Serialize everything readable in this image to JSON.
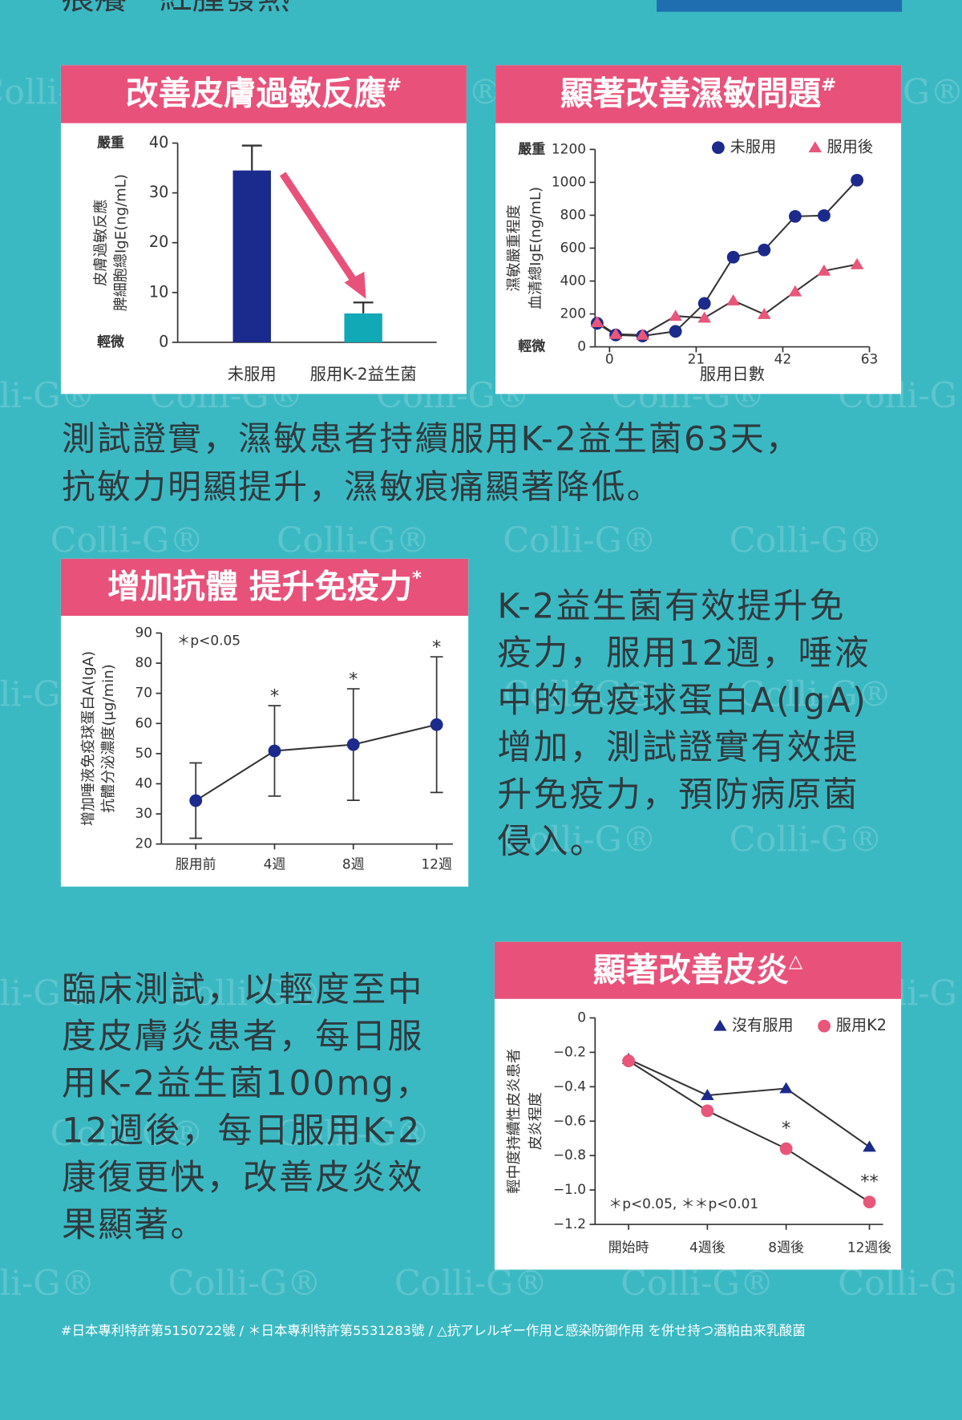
{
  "header_fragment": "痕癢　紅腫發熱",
  "watermark": "Colli-G®",
  "paragraphs": [
    [
      "測試證實，濕敏患者持續服用K-2益生菌63天，",
      "抗敏力明顯提升，濕敏痕痛顯著降低。"
    ],
    [
      "K-2益生菌有效提升免",
      "疫力，服用12週，唾液",
      "中的免疫球蛋白A(IgA)",
      "增加，測試證實有效提",
      "升免疫力，預防病原菌",
      "侵入。"
    ],
    [
      "臨床測試，以輕度至中",
      "度皮膚炎患者，每日服",
      "用K-2益生菌100mg，",
      "12週後，每日服用K-2",
      "康復更快，改善皮炎效",
      "果顯著。"
    ]
  ],
  "footnote": "#日本專利特許第5150722號 / ＊日本專利特許第5531283號 / △抗アレルギー作用と感染防御作用 を併せ持つ酒粕由来乳酸菌",
  "chart_data": [
    {
      "type": "bar",
      "title": "改善皮膚過敏反應",
      "title_mark": "#",
      "ylabel": [
        "皮膚過敏反應",
        "脾細胞總IgE(ng/mL)"
      ],
      "y_top_label": "嚴重",
      "y_bottom_label": "輕微",
      "categories": [
        "未服用",
        "服用K-2益生菌"
      ],
      "values": [
        34.5,
        5.8
      ],
      "errors": [
        5,
        2.2
      ],
      "colors": [
        "#1b2a8d",
        "#12a9b6"
      ],
      "ylim": [
        0,
        40
      ],
      "yticks": [
        0,
        10,
        20,
        30,
        40
      ]
    },
    {
      "type": "line",
      "title": "顯著改善濕敏問題",
      "title_mark": "#",
      "ylabel": [
        "濕敏嚴重程度",
        "血清總IgE(ng/mL)"
      ],
      "y_top_label": "嚴重",
      "y_bottom_label": "輕微",
      "xlabel": "服用日數",
      "x": [
        -3,
        1.5,
        8,
        16,
        23,
        30,
        37.5,
        45,
        52,
        60
      ],
      "series": [
        {
          "name": "未服用",
          "color": "#1c2a8c",
          "marker": "circle",
          "values": [
            143,
            72,
            66,
            94,
            264,
            545,
            589,
            793,
            798,
            1013
          ]
        },
        {
          "name": "服用後",
          "color": "#e8567a",
          "marker": "triangle",
          "values": [
            149,
            77,
            72,
            187,
            176,
            281,
            198,
            336,
            462,
            501
          ]
        }
      ],
      "xlim": [
        -3.5,
        63
      ],
      "xticks": [
        0,
        21,
        42,
        63
      ],
      "ylim": [
        0,
        1200
      ],
      "yticks": [
        0,
        200,
        400,
        600,
        800,
        1000,
        1200
      ],
      "legend": "top-right"
    },
    {
      "type": "line",
      "title": "增加抗體 提升免疫力",
      "title_mark": "*",
      "ylabel": [
        "增加唾液免疫球蛋白A(IgA)",
        "抗體分泌濃度(μg/min)"
      ],
      "note": "＊p<0.05",
      "categories": [
        "服用前",
        "4週",
        "8週",
        "12週"
      ],
      "values": [
        34.4,
        50.9,
        53,
        59.6
      ],
      "errors": [
        12.5,
        15,
        18.5,
        22.5
      ],
      "significance": [
        null,
        "*",
        "*",
        "*"
      ],
      "color": "#1c2a8c",
      "marker": "circle",
      "ylim": [
        20,
        90
      ],
      "yticks": [
        20,
        30,
        40,
        50,
        60,
        70,
        80,
        90
      ]
    },
    {
      "type": "line",
      "title": "顯著改善皮炎",
      "title_mark": "△",
      "ylabel": [
        "輕中度持續性皮炎患者",
        "皮炎程度"
      ],
      "note": "＊p<0.05,  ＊＊p<0.01",
      "categories": [
        "開始時",
        "4週後",
        "8週後",
        "12週後"
      ],
      "series": [
        {
          "name": "沒有服用",
          "color": "#1c2a8c",
          "marker": "triangle",
          "values": [
            -0.24,
            -0.45,
            -0.41,
            -0.75
          ]
        },
        {
          "name": "服用K2",
          "color": "#e8567a",
          "marker": "circle",
          "values": [
            -0.25,
            -0.54,
            -0.76,
            -1.07
          ],
          "significance": [
            null,
            null,
            "*",
            "**"
          ]
        }
      ],
      "ylim": [
        -1.2,
        0
      ],
      "yticks": [
        0,
        {
          "value": -0.2,
          "label": "−0.2"
        },
        {
          "value": -0.4,
          "label": "−0.4"
        },
        {
          "value": -0.6,
          "label": "−0.6"
        },
        {
          "value": -0.8,
          "label": "−0.8"
        },
        {
          "value": -1.0,
          "label": "−1.0"
        },
        {
          "value": -1.2,
          "label": "−1.2"
        }
      ],
      "legend": "top-right"
    }
  ]
}
